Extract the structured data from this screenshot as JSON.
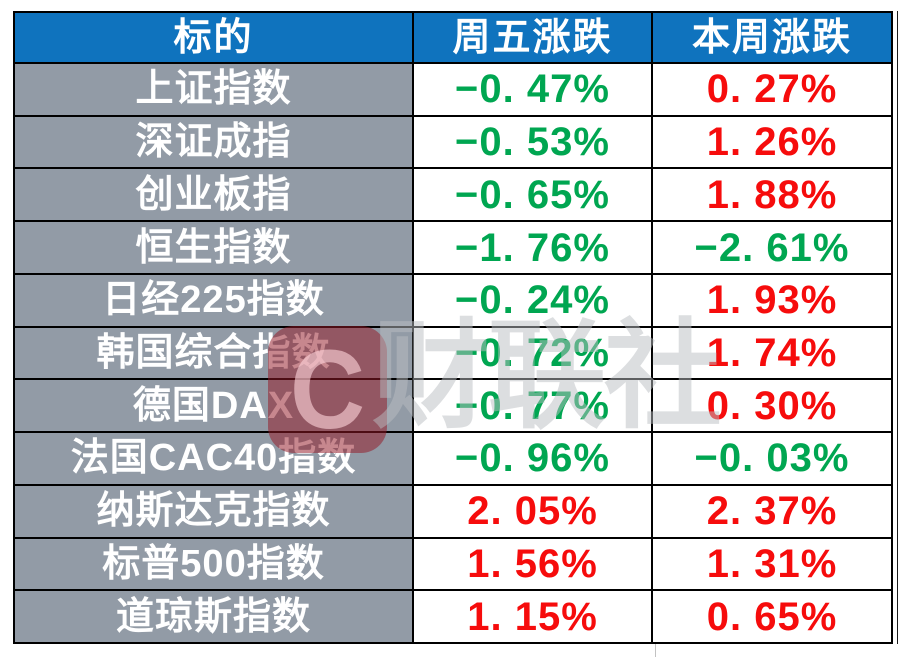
{
  "colors": {
    "header_bg": "#0F73BE",
    "label_bg": "#929BA6",
    "up_red": "#F60C0C",
    "down_green": "#00A651",
    "border": "#000000"
  },
  "watermark": {
    "logo_letter": "C",
    "text": "财联社"
  },
  "chart_data": {
    "type": "table",
    "title": "",
    "columns": [
      "标的",
      "周五涨跌",
      "本周涨跌"
    ],
    "rows": [
      {
        "name": "上证指数",
        "friday": {
          "text": "−0. 47%",
          "value": -0.47,
          "dir": "down"
        },
        "week": {
          "text": "0. 27%",
          "value": 0.27,
          "dir": "up"
        }
      },
      {
        "name": "深证成指",
        "friday": {
          "text": "−0. 53%",
          "value": -0.53,
          "dir": "down"
        },
        "week": {
          "text": "1. 26%",
          "value": 1.26,
          "dir": "up"
        }
      },
      {
        "name": "创业板指",
        "friday": {
          "text": "−0. 65%",
          "value": -0.65,
          "dir": "down"
        },
        "week": {
          "text": "1. 88%",
          "value": 1.88,
          "dir": "up"
        }
      },
      {
        "name": "恒生指数",
        "friday": {
          "text": "−1. 76%",
          "value": -1.76,
          "dir": "down"
        },
        "week": {
          "text": "−2. 61%",
          "value": -2.61,
          "dir": "down"
        }
      },
      {
        "name": "日经225指数",
        "friday": {
          "text": "−0. 24%",
          "value": -0.24,
          "dir": "down"
        },
        "week": {
          "text": "1. 93%",
          "value": 1.93,
          "dir": "up"
        }
      },
      {
        "name": "韩国综合指数",
        "friday": {
          "text": "−0. 72%",
          "value": -0.72,
          "dir": "down"
        },
        "week": {
          "text": "1. 74%",
          "value": 1.74,
          "dir": "up"
        }
      },
      {
        "name": "德国DAX",
        "friday": {
          "text": "−0. 77%",
          "value": -0.77,
          "dir": "down"
        },
        "week": {
          "text": "0. 30%",
          "value": 0.3,
          "dir": "up"
        }
      },
      {
        "name": "法国CAC40指数",
        "friday": {
          "text": "−0. 96%",
          "value": -0.96,
          "dir": "down"
        },
        "week": {
          "text": "−0. 03%",
          "value": -0.03,
          "dir": "down"
        }
      },
      {
        "name": "纳斯达克指数",
        "friday": {
          "text": "2. 05%",
          "value": 2.05,
          "dir": "up"
        },
        "week": {
          "text": "2. 37%",
          "value": 2.37,
          "dir": "up"
        }
      },
      {
        "name": "标普500指数",
        "friday": {
          "text": "1. 56%",
          "value": 1.56,
          "dir": "up"
        },
        "week": {
          "text": "1. 31%",
          "value": 1.31,
          "dir": "up"
        }
      },
      {
        "name": "道琼斯指数",
        "friday": {
          "text": "1. 15%",
          "value": 1.15,
          "dir": "up"
        },
        "week": {
          "text": "0. 65%",
          "value": 0.65,
          "dir": "up"
        }
      }
    ],
    "legend": "red = rise, green = fall (CN market convention)"
  }
}
